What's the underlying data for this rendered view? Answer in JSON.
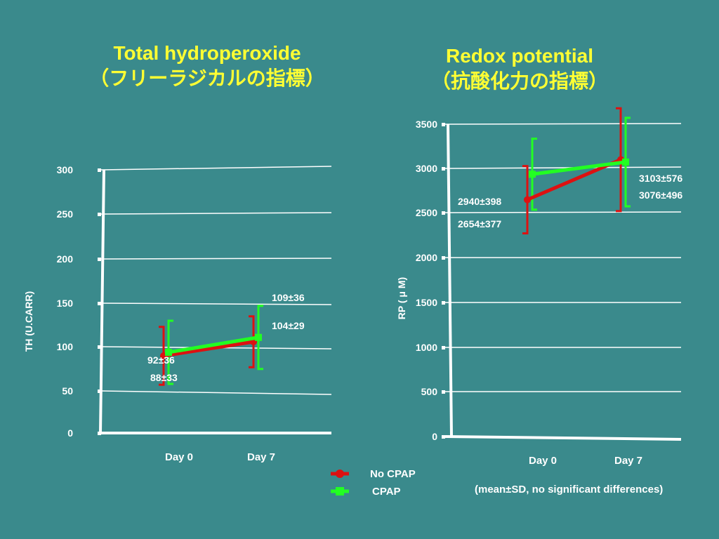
{
  "legend": {
    "entries": [
      {
        "label": "No CPAP",
        "color": "#dd1111",
        "marker": "circle"
      },
      {
        "label": "CPAP",
        "color": "#22ff22",
        "marker": "square"
      }
    ]
  },
  "footnote": "(mean±SD, no significant differences)",
  "chart_data": [
    {
      "type": "line",
      "title": "Total hydroperoxide",
      "subtitle": "（フリーラジカルの指標）",
      "ylabel": "TH (U.CARR)",
      "xlabel": "",
      "categories": [
        "Day 0",
        "Day 7"
      ],
      "yticks": [
        0,
        50,
        100,
        150,
        200,
        250,
        300
      ],
      "ylim": [
        0,
        300
      ],
      "grid": true,
      "series": [
        {
          "name": "No CPAP",
          "color": "#dd1111",
          "values": [
            88,
            104
          ],
          "sd": [
            33,
            29
          ],
          "labels": [
            "88±33",
            "104±29"
          ]
        },
        {
          "name": "CPAP",
          "color": "#22ff22",
          "values": [
            92,
            109
          ],
          "sd": [
            36,
            36
          ],
          "labels": [
            "92±36",
            "109±36"
          ]
        }
      ]
    },
    {
      "type": "line",
      "title": "Redox potential",
      "subtitle": "（抗酸化力の指標）",
      "ylabel": "RP ( μ M)",
      "xlabel": "",
      "categories": [
        "Day 0",
        "Day 7"
      ],
      "yticks": [
        0,
        500,
        1000,
        1500,
        2000,
        2500,
        3000,
        3500
      ],
      "ylim": [
        0,
        3500
      ],
      "grid": true,
      "series": [
        {
          "name": "No CPAP",
          "color": "#dd1111",
          "values": [
            2654,
            3103
          ],
          "sd": [
            377,
            576
          ],
          "labels": [
            "2654±377",
            "3103±576"
          ]
        },
        {
          "name": "CPAP",
          "color": "#22ff22",
          "values": [
            2940,
            3076
          ],
          "sd": [
            398,
            496
          ],
          "labels": [
            "2940±398",
            "3076±496"
          ]
        }
      ]
    }
  ]
}
